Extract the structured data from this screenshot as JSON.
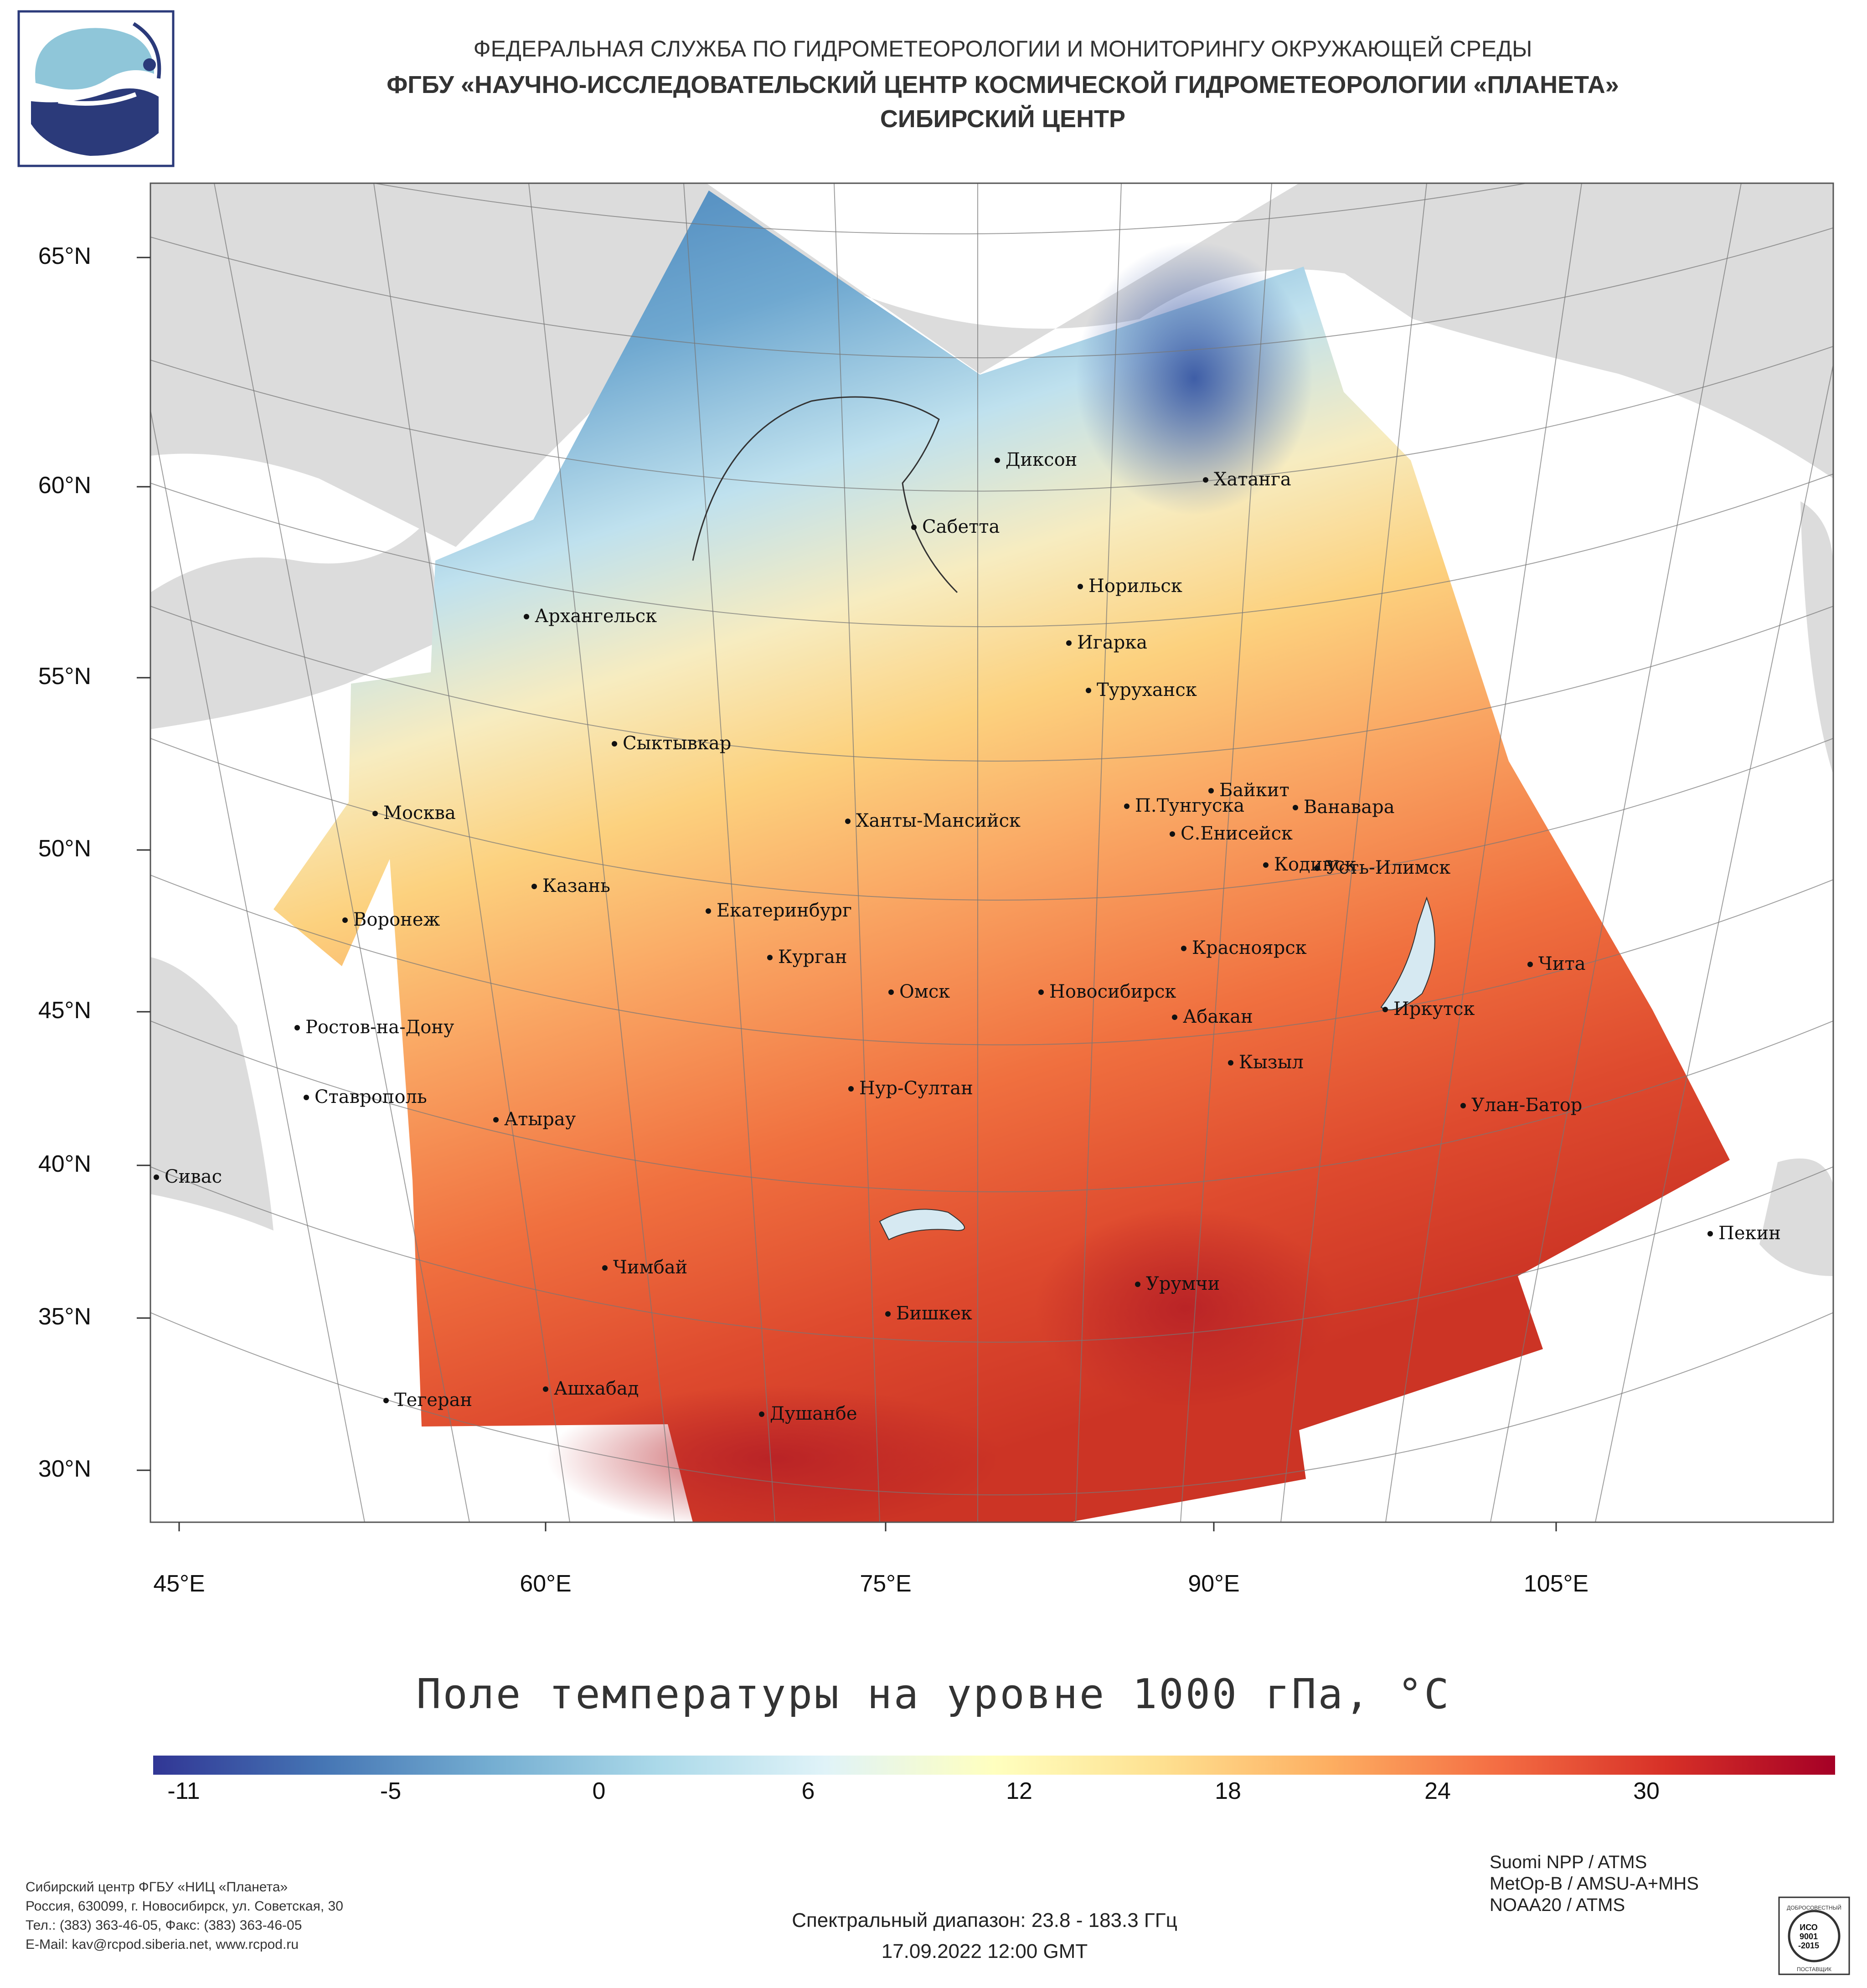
{
  "header": {
    "line1": "ФЕДЕРАЛЬНАЯ СЛУЖБА ПО ГИДРОМЕТЕОРОЛОГИИ И МОНИТОРИНГУ ОКРУЖАЮЩЕЙ СРЕДЫ",
    "line2": "ФГБУ «НАУЧНО-ИССЛЕДОВАТЕЛЬСКИЙ ЦЕНТР КОСМИЧЕСКОЙ ГИДРОМЕТЕОРОЛОГИИ «ПЛАНЕТА»",
    "line3": "СИБИРСКИЙ ЦЕНТР"
  },
  "latitude_labels": [
    "65°N",
    "60°N",
    "55°N",
    "50°N",
    "45°N",
    "40°N",
    "35°N",
    "30°N"
  ],
  "longitude_labels": [
    "45°E",
    "60°E",
    "75°E",
    "90°E",
    "105°E"
  ],
  "cities": [
    "Диксон",
    "Хатанга",
    "Сабетта",
    "Норильск",
    "Архангельск",
    "Игарка",
    "Туруханск",
    "Сыктывкар",
    "Байкит",
    "П.Тунгуска",
    "Ванавара",
    "Москва",
    "Ханты-Мансийск",
    "С.Енисейск",
    "Кодинск",
    "Усть-Илимск",
    "Казань",
    "Воронеж",
    "Екатеринбург",
    "Красноярск",
    "Курган",
    "Чита",
    "Омск",
    "Новосибирск",
    "Иркутск",
    "Ростов-на-Дону",
    "Абакан",
    "Кызыл",
    "Ставрополь",
    "Нур-Султан",
    "Улан-Батор",
    "Атырау",
    "Сивас",
    "Пекин",
    "Чимбай",
    "Урумчи",
    "Бишкек",
    "Ашхабад",
    "Тегеран",
    "Душанбе"
  ],
  "map_title": "Поле температуры на уровне 1000 гПа, °С",
  "colorbar": {
    "ticks": [
      "-11",
      "-5",
      "0",
      "6",
      "12",
      "18",
      "24",
      "30"
    ],
    "colors": [
      "#313695",
      "#4575b4",
      "#74add1",
      "#abd9e9",
      "#e0f3f8",
      "#ffffbf",
      "#fee090",
      "#fdae61",
      "#f46d43",
      "#d73027",
      "#a50026"
    ]
  },
  "footer": {
    "org": "Сибирский центр ФГБУ «НИЦ «Планета»",
    "address": "Россия, 630099, г. Новосибирск, ул. Советская, 30",
    "phone": "Тел.: (383) 363-46-05, Факс: (383) 363-46-05",
    "email": "E-Mail: kav@rcpod.siberia.net, www.rcpod.ru",
    "spectral": "Спектральный диапазон: 23.8 - 183.3 ГГц",
    "datetime": "17.09.2022 12:00 GMT",
    "instrument1": "Suomi NPP / ATMS",
    "instrument2": "MetOp-B / AMSU-A+MHS",
    "instrument3": "NOAA20 / ATMS",
    "iso_text1": "ДОБРОСОВЕСТНЫЙ",
    "iso_text2": "ИСО",
    "iso_text3": "9001",
    "iso_text4": "-2015",
    "iso_text5": "ПОСТАВЩИК"
  }
}
